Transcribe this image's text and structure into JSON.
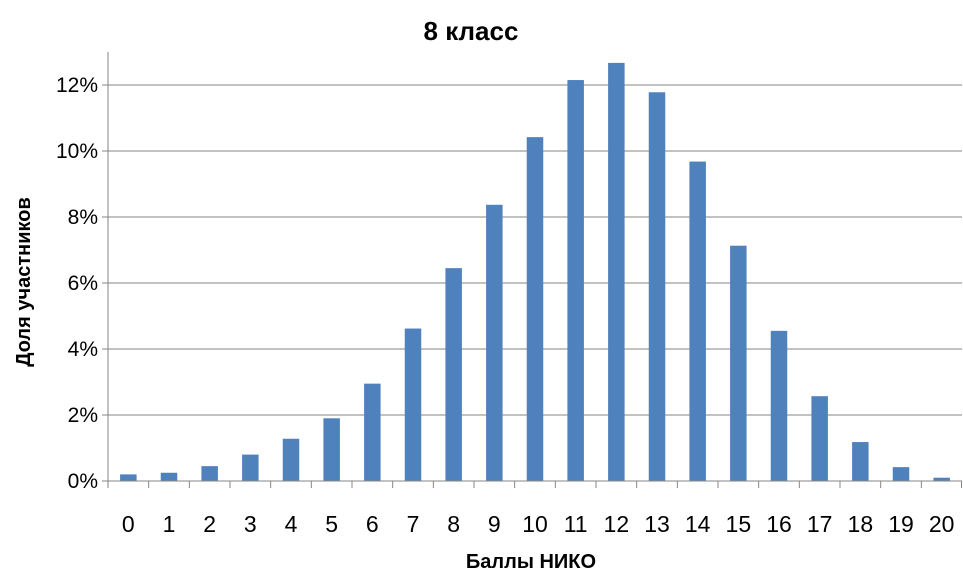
{
  "chart_data": {
    "type": "bar",
    "title": "8 класс",
    "xlabel": "Баллы НИКО",
    "ylabel": "Доля участников",
    "categories": [
      "0",
      "1",
      "2",
      "3",
      "4",
      "5",
      "6",
      "7",
      "8",
      "9",
      "10",
      "11",
      "12",
      "13",
      "14",
      "15",
      "16",
      "17",
      "18",
      "19",
      "20"
    ],
    "values": [
      0.2,
      0.25,
      0.45,
      0.8,
      1.28,
      1.9,
      2.95,
      4.62,
      6.45,
      8.37,
      10.42,
      12.15,
      12.67,
      11.78,
      9.68,
      7.13,
      4.55,
      2.57,
      1.18,
      0.42,
      0.1
    ],
    "ylim": [
      0,
      12
    ],
    "yticks": [
      "0%",
      "2%",
      "4%",
      "6%",
      "8%",
      "10%",
      "12%"
    ],
    "grid": true,
    "bar_color": "#4f81bd",
    "grid_color": "#868686"
  }
}
